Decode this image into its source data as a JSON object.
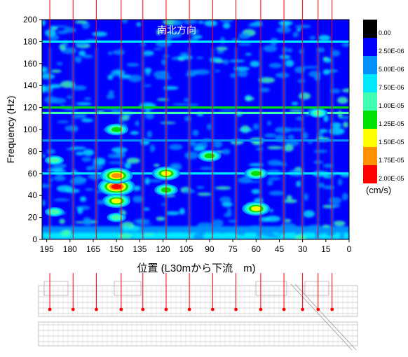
{
  "chart_data": {
    "type": "heatmap",
    "title": "南北方向",
    "xlabel": "位置 (L30mから下流　m)",
    "ylabel": "Frequency (Hz)",
    "xlim": [
      198,
      0
    ],
    "ylim": [
      0,
      200
    ],
    "x_ticks": [
      195,
      180,
      165,
      150,
      135,
      120,
      105,
      90,
      75,
      60,
      45,
      30,
      15,
      0
    ],
    "y_ticks": [
      0,
      20,
      40,
      60,
      80,
      100,
      120,
      140,
      160,
      180,
      200
    ],
    "colorbar": {
      "unit": "(cm/s)",
      "labels": [
        "0.00",
        "2.50E-06",
        "5.00E-06",
        "7.50E-06",
        "1.00E-05",
        "1.25E-05",
        "1.50E-05",
        "1.75E-05",
        "2.00E-05"
      ],
      "colors": [
        "#000000",
        "#0000ff",
        "#0090ff",
        "#00e8ff",
        "#40ffb0",
        "#00e000",
        "#ffff00",
        "#ff9000",
        "#ff0000"
      ]
    },
    "measurement_positions": [
      193,
      178,
      163,
      147,
      133,
      118,
      103,
      88,
      73,
      57,
      42,
      30,
      20,
      11
    ],
    "background_level": 2.5e-06,
    "hot_spots": [
      {
        "x": 150,
        "y": 48,
        "level": 2e-05
      },
      {
        "x": 150,
        "y": 58,
        "level": 1.75e-05
      },
      {
        "x": 150,
        "y": 35,
        "level": 1.5e-05
      },
      {
        "x": 150,
        "y": 20,
        "level": 1e-05
      },
      {
        "x": 150,
        "y": 100,
        "level": 1.25e-05
      },
      {
        "x": 118,
        "y": 60,
        "level": 1.5e-05
      },
      {
        "x": 118,
        "y": 45,
        "level": 1.25e-05
      },
      {
        "x": 90,
        "y": 76,
        "level": 1.25e-05
      },
      {
        "x": 60,
        "y": 28,
        "level": 1.5e-05
      },
      {
        "x": 60,
        "y": 60,
        "level": 1.25e-05
      },
      {
        "x": 190,
        "y": 25,
        "level": 1e-05
      },
      {
        "x": 190,
        "y": 72,
        "level": 1e-05
      },
      {
        "x": 20,
        "y": 115,
        "level": 1e-05
      }
    ],
    "bands": [
      {
        "y": 120,
        "level": 1.25e-05
      },
      {
        "y": 115,
        "level": 1e-05
      },
      {
        "y": 180,
        "level": 7.5e-06
      },
      {
        "y": 60,
        "level": 7.5e-06
      },
      {
        "y": 90,
        "level": 5e-06
      }
    ],
    "low_frequency_floor": {
      "y_max": 12,
      "level": 5e-06
    }
  },
  "schematic": {
    "description_visible": false
  }
}
